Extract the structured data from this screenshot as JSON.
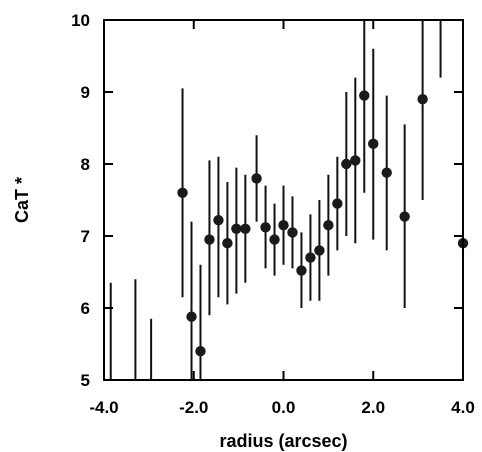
{
  "chart_data": {
    "type": "scatter",
    "title": "",
    "xlabel": "radius (arcsec)",
    "ylabel": "CaT *",
    "xlim": [
      -4.0,
      4.0
    ],
    "ylim": [
      5,
      10
    ],
    "x_ticks": [
      -4.0,
      -2.0,
      0.0,
      2.0,
      4.0
    ],
    "x_tick_labels": [
      "-4.0",
      "-2.0",
      "0.0",
      "2.0",
      "4.0"
    ],
    "y_ticks": [
      5,
      6,
      7,
      8,
      9,
      10
    ],
    "y_tick_labels": [
      "5",
      "6",
      "7",
      "8",
      "9",
      "10"
    ],
    "grid": false,
    "legend": "none",
    "series": [
      {
        "marker_color": "#1a1a1a",
        "points": [
          {
            "x": -2.25,
            "y": 7.6,
            "ylo": 6.15,
            "yhi": 9.05
          },
          {
            "x": -2.05,
            "y": 5.88,
            "ylo": 5.0,
            "yhi": 7.2
          },
          {
            "x": -1.85,
            "y": 5.4,
            "ylo": 5.0,
            "yhi": 6.6
          },
          {
            "x": -1.65,
            "y": 6.95,
            "ylo": 5.9,
            "yhi": 8.05
          },
          {
            "x": -1.45,
            "y": 7.22,
            "ylo": 6.15,
            "yhi": 8.1
          },
          {
            "x": -1.25,
            "y": 6.9,
            "ylo": 6.05,
            "yhi": 7.75
          },
          {
            "x": -1.05,
            "y": 7.1,
            "ylo": 6.2,
            "yhi": 7.95
          },
          {
            "x": -0.85,
            "y": 7.1,
            "ylo": 6.35,
            "yhi": 7.85
          },
          {
            "x": -0.6,
            "y": 7.8,
            "ylo": 7.2,
            "yhi": 8.4
          },
          {
            "x": -0.4,
            "y": 7.12,
            "ylo": 6.55,
            "yhi": 7.7
          },
          {
            "x": -0.2,
            "y": 6.95,
            "ylo": 6.45,
            "yhi": 7.45
          },
          {
            "x": 0.0,
            "y": 7.15,
            "ylo": 6.6,
            "yhi": 7.7
          },
          {
            "x": 0.2,
            "y": 7.05,
            "ylo": 6.55,
            "yhi": 7.55
          },
          {
            "x": 0.4,
            "y": 6.52,
            "ylo": 6.0,
            "yhi": 7.05
          },
          {
            "x": 0.6,
            "y": 6.7,
            "ylo": 6.1,
            "yhi": 7.3
          },
          {
            "x": 0.8,
            "y": 6.8,
            "ylo": 6.1,
            "yhi": 7.5
          },
          {
            "x": 1.0,
            "y": 7.15,
            "ylo": 6.45,
            "yhi": 7.85
          },
          {
            "x": 1.2,
            "y": 7.45,
            "ylo": 6.8,
            "yhi": 8.1
          },
          {
            "x": 1.4,
            "y": 8.0,
            "ylo": 7.0,
            "yhi": 9.0
          },
          {
            "x": 1.6,
            "y": 8.05,
            "ylo": 6.9,
            "yhi": 9.2
          },
          {
            "x": 1.8,
            "y": 8.95,
            "ylo": 7.6,
            "yhi": 10.0
          },
          {
            "x": 2.0,
            "y": 8.28,
            "ylo": 6.95,
            "yhi": 9.6
          },
          {
            "x": 2.3,
            "y": 7.88,
            "ylo": 6.8,
            "yhi": 8.95
          },
          {
            "x": 2.7,
            "y": 7.27,
            "ylo": 6.0,
            "yhi": 8.55
          },
          {
            "x": 3.1,
            "y": 8.9,
            "ylo": 7.5,
            "yhi": 10.0
          },
          {
            "x": 4.0,
            "y": 6.9,
            "ylo": 5.9,
            "yhi": 7.9
          }
        ]
      },
      {
        "error_bars_only": [
          {
            "x": -3.85,
            "ylo": 5.0,
            "yhi": 6.35
          },
          {
            "x": -3.3,
            "ylo": 5.0,
            "yhi": 6.4
          },
          {
            "x": -2.95,
            "ylo": 5.0,
            "yhi": 5.85
          },
          {
            "x": 3.5,
            "ylo": 9.2,
            "yhi": 10.0
          }
        ]
      }
    ]
  }
}
